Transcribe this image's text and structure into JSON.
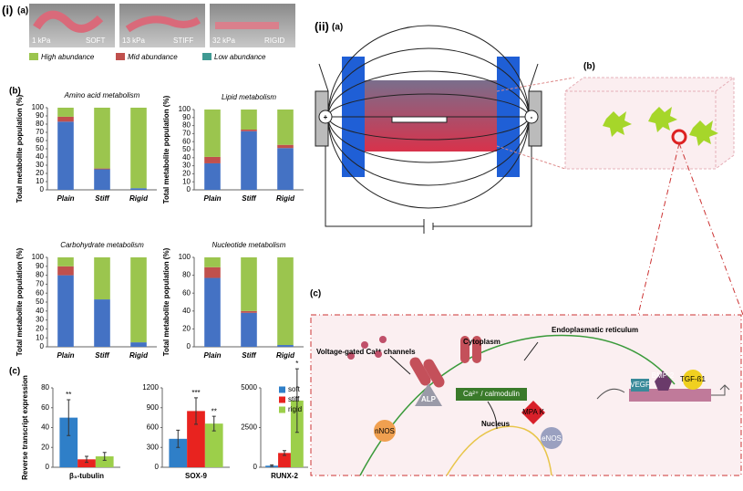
{
  "panel_i": {
    "label": "(i)",
    "a_label": "(a)",
    "b_label": "(b)",
    "c_label": "(c)",
    "photos": [
      {
        "pressure": "1 kPa",
        "stiffness": "SOFT"
      },
      {
        "pressure": "13 kPa",
        "stiffness": "STIFF"
      },
      {
        "pressure": "32 kPa",
        "stiffness": "RIGID"
      }
    ]
  },
  "legend": [
    {
      "name": "High abundance",
      "color": "#9bc54e"
    },
    {
      "name": "Mid abundance",
      "color": "#c0504d"
    },
    {
      "name": "Low abundance",
      "color": "#3f9a93"
    }
  ],
  "chart_data": [
    {
      "type": "stacked_bar",
      "title": "Amino acid metabolism",
      "y_label": "Total metabolite population (%)",
      "categories": [
        "Plain",
        "Stiff",
        "Rigid"
      ],
      "series": [
        {
          "color": "#4472c4",
          "values": [
            83,
            25,
            2
          ]
        },
        {
          "color": "#c0504d",
          "values": [
            6,
            1,
            0
          ]
        },
        {
          "color": "#9bc54e",
          "values": [
            11,
            74,
            98
          ]
        }
      ],
      "ylim": [
        0,
        100
      ],
      "yticks": [
        0,
        10,
        20,
        30,
        40,
        50,
        60,
        70,
        80,
        90,
        100
      ]
    },
    {
      "type": "stacked_bar",
      "title": "Lipid metabolism",
      "y_label": "Total metabolite population (%)",
      "categories": [
        "Plain",
        "Stiff",
        "Rigid"
      ],
      "series": [
        {
          "color": "#4472c4",
          "values": [
            33,
            73,
            52
          ]
        },
        {
          "color": "#c0504d",
          "values": [
            8,
            2,
            4
          ]
        },
        {
          "color": "#9bc54e",
          "values": [
            59,
            25,
            44
          ]
        }
      ],
      "ylim": [
        0,
        100
      ],
      "yticks": [
        0,
        10,
        20,
        30,
        40,
        50,
        60,
        70,
        80,
        90,
        100
      ]
    },
    {
      "type": "stacked_bar",
      "title": "Carbohydrate metabolism",
      "y_label": "Total metabolite population (%)",
      "categories": [
        "Plain",
        "Stiff",
        "Rigid"
      ],
      "series": [
        {
          "color": "#4472c4",
          "values": [
            80,
            53,
            5
          ]
        },
        {
          "color": "#c0504d",
          "values": [
            10,
            0,
            0
          ]
        },
        {
          "color": "#9bc54e",
          "values": [
            10,
            47,
            95
          ]
        }
      ],
      "ylim": [
        0,
        100
      ],
      "yticks": [
        0,
        10,
        20,
        30,
        40,
        50,
        60,
        70,
        80,
        90,
        100
      ]
    },
    {
      "type": "stacked_bar",
      "title": "Nucleotide metabolism",
      "y_label": "Total metabolite population (%)",
      "categories": [
        "Plain",
        "Stiff",
        "Rigid"
      ],
      "series": [
        {
          "color": "#4472c4",
          "values": [
            77,
            38,
            2
          ]
        },
        {
          "color": "#c0504d",
          "values": [
            12,
            2,
            0
          ]
        },
        {
          "color": "#9bc54e",
          "values": [
            11,
            60,
            98
          ]
        }
      ],
      "ylim": [
        0,
        100
      ],
      "yticks": [
        0,
        20,
        40,
        60,
        80,
        100
      ]
    },
    {
      "type": "bar",
      "y_label": "Reverse transcript expression",
      "categories": [
        "β₃-tubulin"
      ],
      "series": [
        {
          "color": "#2f7fc8",
          "values": [
            50
          ],
          "errors": [
            18
          ],
          "annotation": "**"
        },
        {
          "color": "#e8231f",
          "values": [
            8
          ],
          "errors": [
            3
          ]
        },
        {
          "color": "#9ccf4a",
          "values": [
            11
          ],
          "errors": [
            4
          ]
        }
      ],
      "ylim": [
        0,
        80
      ],
      "yticks": [
        0,
        20,
        40,
        60,
        80
      ]
    },
    {
      "type": "bar",
      "categories": [
        "SOX-9"
      ],
      "series": [
        {
          "color": "#2f7fc8",
          "values": [
            430
          ],
          "errors": [
            130
          ]
        },
        {
          "color": "#e8231f",
          "values": [
            850
          ],
          "errors": [
            200
          ],
          "annotation": "***"
        },
        {
          "color": "#9ccf4a",
          "values": [
            660
          ],
          "errors": [
            110
          ],
          "annotation": "**"
        }
      ],
      "ylim": [
        0,
        1200
      ],
      "yticks": [
        0,
        300,
        600,
        900,
        1200
      ]
    },
    {
      "type": "bar",
      "categories": [
        "RUNX-2"
      ],
      "legend": "upper right",
      "series": [
        {
          "name": "soft",
          "color": "#2f7fc8",
          "values": [
            100
          ],
          "errors": [
            50
          ]
        },
        {
          "name": "stiff",
          "color": "#e8231f",
          "values": [
            900
          ],
          "errors": [
            150
          ]
        },
        {
          "name": "rigid",
          "color": "#9ccf4a",
          "values": [
            4200
          ],
          "errors": [
            2000
          ],
          "annotation": "*"
        }
      ],
      "ylim": [
        0,
        5000
      ],
      "yticks": [
        0,
        2500,
        5000
      ]
    }
  ],
  "panel_ii": {
    "label": "(ii)",
    "a_label": "(a)",
    "b_label": "(b)",
    "c_label": "(c)",
    "plus": "+",
    "minus": "-",
    "pathway": {
      "channels": "Voltage-gated Ca²⁺ channels",
      "cytoplasm": "Cytoplasm",
      "er": "Endoplasmatic reticulum",
      "alp": "ALP",
      "calmodulin": "Ca²⁺ / calmodulin",
      "mapk": "MPA K",
      "nucleus": "Nucleus",
      "nnos": "nNOS",
      "enos": "eNOS",
      "vegf": "VEGF",
      "bmp": "BMP-2",
      "tgf": "TGF-ß1"
    }
  }
}
